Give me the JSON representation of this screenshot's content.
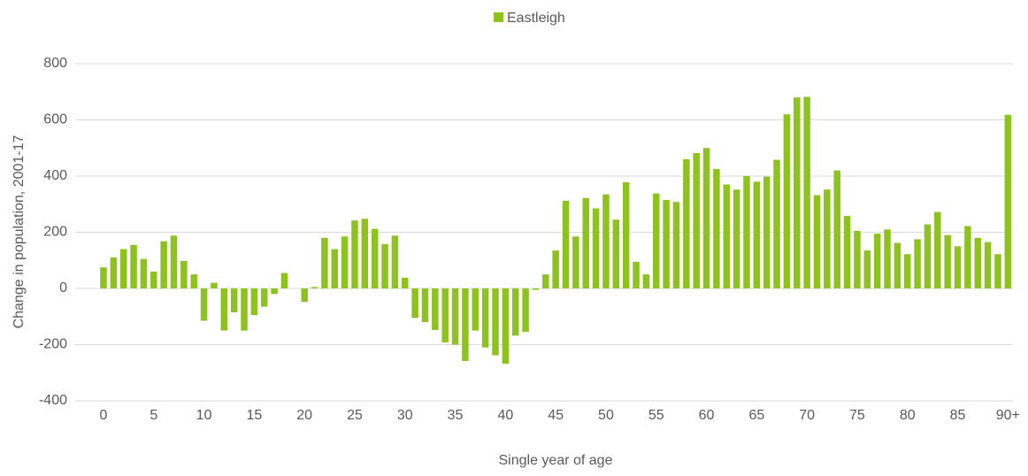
{
  "chart_data": {
    "type": "bar",
    "y_label": "Change in population, 2001-17",
    "x_label": "Single year of age",
    "categories": [
      "0",
      null,
      null,
      null,
      null,
      "5",
      null,
      null,
      null,
      null,
      "10",
      null,
      null,
      null,
      null,
      "15",
      null,
      null,
      null,
      null,
      "20",
      null,
      null,
      null,
      null,
      "25",
      null,
      null,
      null,
      null,
      "30",
      null,
      null,
      null,
      null,
      "35",
      null,
      null,
      null,
      null,
      "40",
      null,
      null,
      null,
      null,
      "45",
      null,
      null,
      null,
      null,
      "50",
      null,
      null,
      null,
      null,
      "55",
      null,
      null,
      null,
      null,
      "60",
      null,
      null,
      null,
      null,
      "65",
      null,
      null,
      null,
      null,
      "70",
      null,
      null,
      null,
      null,
      "75",
      null,
      null,
      null,
      null,
      "80",
      null,
      null,
      null,
      null,
      "85",
      null,
      null,
      null,
      null,
      "90+"
    ],
    "series": [
      {
        "name": "Eastleigh",
        "color": "#8dc21f",
        "values": [
          75,
          110,
          140,
          155,
          105,
          60,
          168,
          188,
          98,
          50,
          -115,
          20,
          -150,
          -85,
          -150,
          -95,
          -65,
          -20,
          55,
          0,
          -48,
          5,
          180,
          140,
          185,
          242,
          248,
          212,
          158,
          188,
          38,
          -105,
          -120,
          -148,
          -192,
          -200,
          -258,
          -150,
          -210,
          -238,
          -268,
          -168,
          -155,
          -5,
          50,
          135,
          312,
          185,
          322,
          285,
          335,
          245,
          378,
          95,
          50,
          338,
          315,
          308,
          460,
          482,
          500,
          425,
          370,
          352,
          400,
          380,
          398,
          458,
          620,
          680,
          682,
          332,
          352,
          420,
          258,
          205,
          135,
          195,
          210,
          162,
          122,
          175,
          228,
          272,
          190,
          150,
          222,
          180,
          165,
          122,
          618
        ]
      }
    ],
    "ylim": [
      -400,
      800
    ],
    "yticks": [
      -400,
      -200,
      0,
      200,
      400,
      600,
      800
    ],
    "grid": true,
    "legend": "top"
  }
}
